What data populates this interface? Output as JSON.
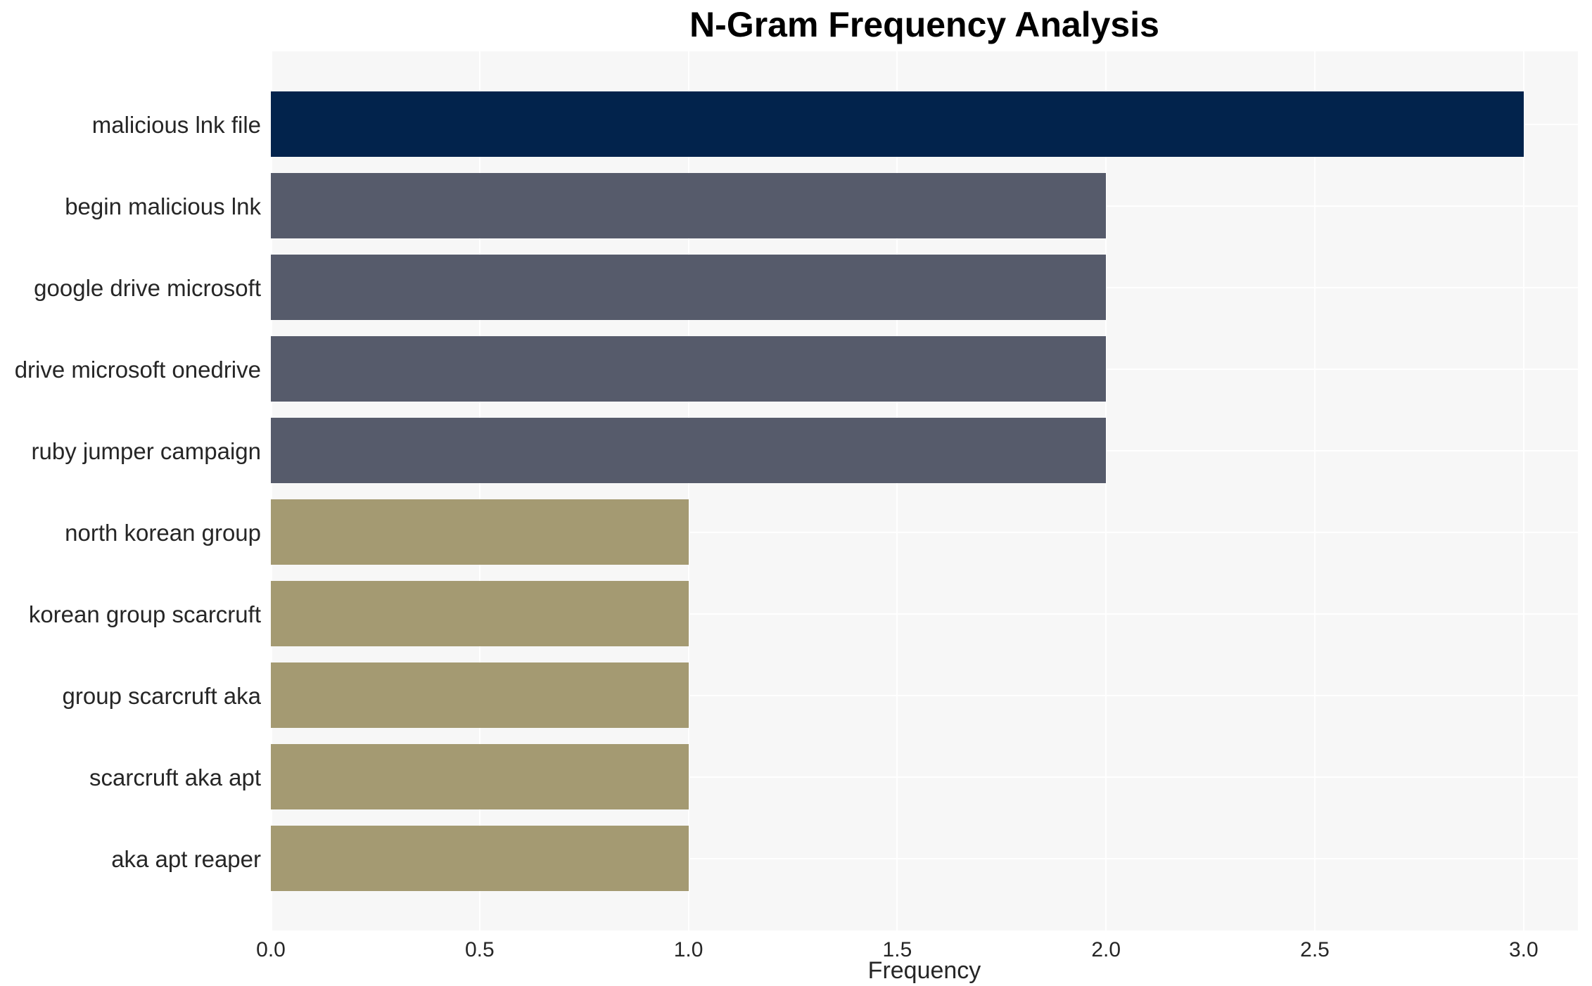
{
  "chart": {
    "title": "N-Gram Frequency Analysis",
    "xlabel": "Frequency"
  },
  "chart_data": {
    "type": "bar",
    "orientation": "horizontal",
    "title": "N-Gram Frequency Analysis",
    "xlabel": "Frequency",
    "ylabel": "",
    "categories": [
      "malicious lnk file",
      "begin malicious lnk",
      "google drive microsoft",
      "drive microsoft onedrive",
      "ruby jumper campaign",
      "north korean group",
      "korean group scarcruft",
      "group scarcruft aka",
      "scarcruft aka apt",
      "aka apt reaper"
    ],
    "values": [
      3,
      2,
      2,
      2,
      2,
      1,
      1,
      1,
      1,
      1
    ],
    "bar_colors": [
      "#02234c",
      "#565b6b",
      "#565b6b",
      "#565b6b",
      "#565b6b",
      "#a49a72",
      "#a49a72",
      "#a49a72",
      "#a49a72",
      "#a49a72"
    ],
    "x_ticks": [
      0.0,
      0.5,
      1.0,
      1.5,
      2.0,
      2.5,
      3.0
    ],
    "x_tick_labels": [
      "0.0",
      "0.5",
      "1.0",
      "1.5",
      "2.0",
      "2.5",
      "3.0"
    ],
    "xlim": [
      0,
      3.13
    ],
    "grid": true,
    "legend": false,
    "colors": {
      "plot_background": "#f7f7f7",
      "grid_line": "#ffffff",
      "title_text": "#000000",
      "tick_text": "#262626",
      "bar_value_3": "#02234c",
      "bar_value_2": "#565b6b",
      "bar_value_1": "#a49a72"
    }
  },
  "layout_hints": {
    "legend_position": "none",
    "bars_start_at_zero": true
  }
}
